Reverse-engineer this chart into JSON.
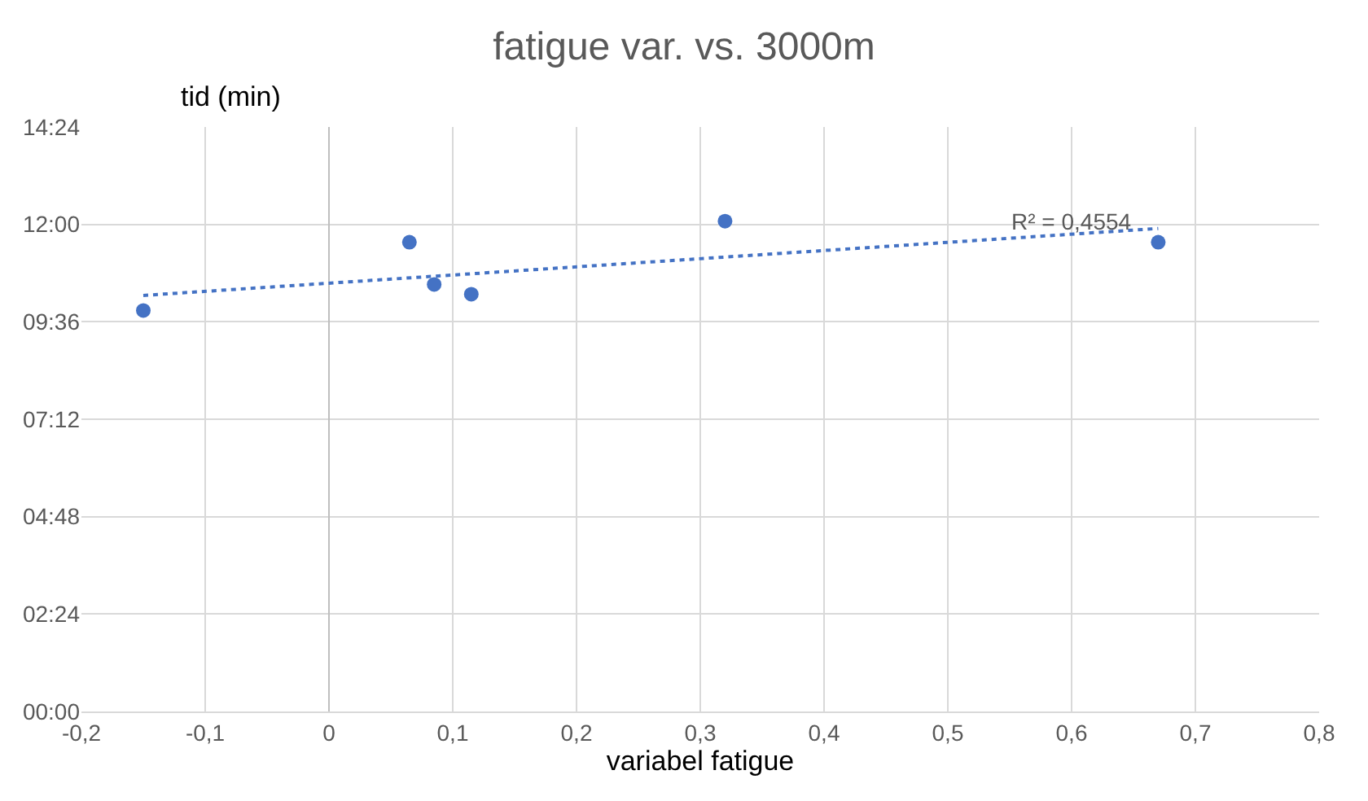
{
  "chart_data": {
    "type": "scatter",
    "title": "fatigue var. vs. 3000m",
    "xlabel": "variabel fatigue",
    "ylabel": "tid (min)",
    "xlim": [
      -0.2,
      0.8
    ],
    "xticks": [
      {
        "value": -0.2,
        "label": "-0,2"
      },
      {
        "value": -0.1,
        "label": "-0,1"
      },
      0,
      {
        "value": 0.1,
        "label": "0,1"
      },
      {
        "value": 0.2,
        "label": "0,2"
      },
      {
        "value": 0.3,
        "label": "0,3"
      },
      {
        "value": 0.4,
        "label": "0,4"
      },
      {
        "value": 0.5,
        "label": "0,5"
      },
      {
        "value": 0.6,
        "label": "0,6"
      },
      {
        "value": 0.7,
        "label": "0,7"
      },
      {
        "value": 0.8,
        "label": "0,8"
      }
    ],
    "ylim": [
      0,
      14.4
    ],
    "yticks": [
      {
        "value": 0,
        "label": "00:00"
      },
      {
        "value": 2.4,
        "label": "02:24"
      },
      {
        "value": 4.8,
        "label": "04:48"
      },
      {
        "value": 7.2,
        "label": "07:12"
      },
      {
        "value": 9.6,
        "label": "09:36"
      },
      {
        "value": 12,
        "label": "12:00"
      },
      {
        "value": 14.4,
        "label": "14:24"
      }
    ],
    "grid": true,
    "series": [
      {
        "color": "#4472c4",
        "marker": "circle",
        "x": [
          -0.15,
          0.065,
          0.085,
          0.115,
          0.32,
          0.67
        ],
        "values": [
          9.88,
          11.56,
          10.52,
          10.28,
          12.08,
          11.56
        ]
      },
      {
        "type": "line",
        "color": "#4472c4",
        "marker": "none",
        "line_style": "dotted",
        "x": [
          -0.15,
          0.67
        ],
        "values": [
          10.25,
          11.9
        ]
      }
    ],
    "annotations": [
      {
        "text": "R² = 0,4554",
        "x": 0.6,
        "y": 11.76
      }
    ]
  }
}
